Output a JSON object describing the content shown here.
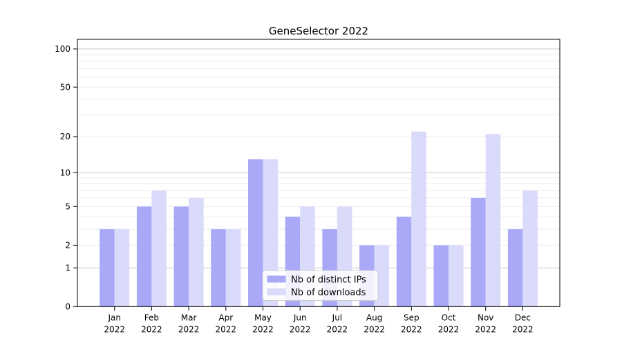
{
  "title": "GeneSelector 2022",
  "year_label": "2022",
  "chart_data": {
    "type": "bar",
    "title": "GeneSelector 2022",
    "categories": [
      "Jan 2022",
      "Feb 2022",
      "Mar 2022",
      "Apr 2022",
      "May 2022",
      "Jun 2022",
      "Jul 2022",
      "Aug 2022",
      "Sep 2022",
      "Oct 2022",
      "Nov 2022",
      "Dec 2022"
    ],
    "months": [
      "Jan",
      "Feb",
      "Mar",
      "Apr",
      "May",
      "Jun",
      "Jul",
      "Aug",
      "Sep",
      "Oct",
      "Nov",
      "Dec"
    ],
    "year": "2022",
    "series": [
      {
        "name": "Nb of distinct IPs",
        "color": "#a9a9f7",
        "values": [
          3,
          5,
          5,
          3,
          13,
          4,
          3,
          2,
          4,
          2,
          6,
          3
        ]
      },
      {
        "name": "Nb of downloads",
        "color": "#dadafb",
        "values": [
          3,
          7,
          6,
          3,
          13,
          5,
          5,
          2,
          22,
          2,
          21,
          7
        ]
      }
    ],
    "xlabel": "",
    "ylabel": "",
    "yscale": "log1p",
    "ylim": [
      0,
      120
    ],
    "ytick_values": [
      0,
      1,
      2,
      5,
      10,
      20,
      50,
      100
    ],
    "ytick_labels": [
      "0",
      "1",
      "2",
      "5",
      "10",
      "20",
      "50",
      "100"
    ],
    "major_gridline_values": [
      1,
      10,
      100
    ],
    "minor_gridline_values": [
      2,
      3,
      4,
      5,
      6,
      7,
      8,
      9,
      20,
      30,
      40,
      50,
      60,
      70,
      80,
      90
    ],
    "grid": "horizontal",
    "legend_position": "lower center"
  },
  "legend": {
    "items": [
      {
        "label": "Nb of distinct IPs",
        "color": "#a9a9f7"
      },
      {
        "label": "Nb of downloads",
        "color": "#dadafb"
      }
    ]
  },
  "colors": {
    "background": "#ffffff",
    "axis": "#000000",
    "text": "#000000",
    "major_grid": "#c9c9c9",
    "minor_grid": "#ececec",
    "legend_border": "#cccccc",
    "legend_background": "rgba(255,255,255,0.85)"
  }
}
